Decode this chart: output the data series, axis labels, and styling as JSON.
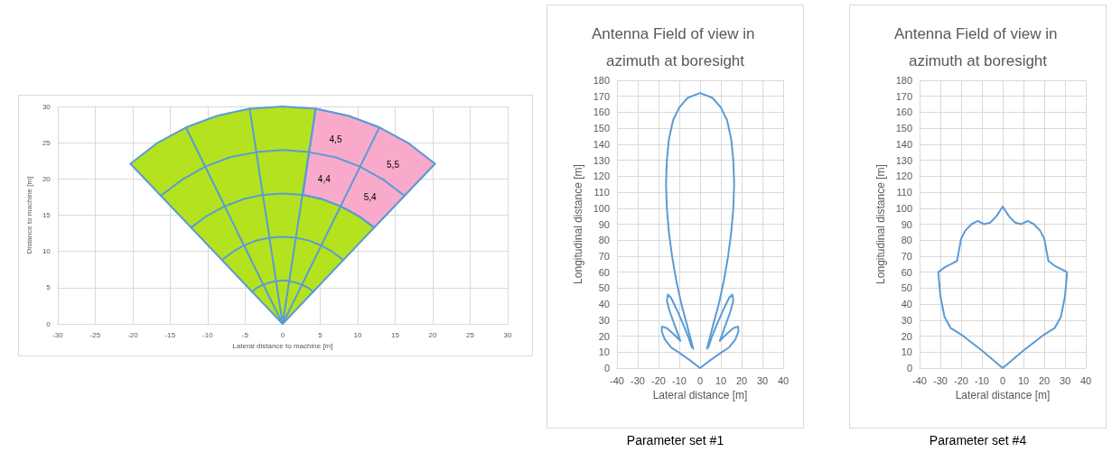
{
  "chart_data": [
    {
      "type": "line",
      "xlabel": "Lateral distance to machine [m]",
      "ylabel": "Distance to machine [m]",
      "xlim": [
        -30,
        30
      ],
      "ylim": [
        0,
        30
      ],
      "xticks": [
        -30,
        -25,
        -20,
        -15,
        -10,
        -5,
        0,
        5,
        10,
        15,
        20,
        25,
        30
      ],
      "yticks": [
        0,
        5,
        10,
        15,
        20,
        25,
        30
      ],
      "grid": true,
      "marker": "none",
      "annotations": [
        "4,5",
        "5,5",
        "4,4",
        "5,4"
      ],
      "series": [
        {
          "type": "area",
          "color": "#b4e21f",
          "x": [
            0,
            -20.3,
            -16.8,
            -12.9,
            -8.8,
            -4.4,
            0,
            4.4,
            8.8,
            12.9,
            16.8,
            20.3,
            0
          ],
          "values": [
            0,
            22.1,
            24.9,
            27.1,
            28.7,
            29.7,
            30,
            29.7,
            28.7,
            27.1,
            24.9,
            22.1,
            0
          ]
        },
        {
          "type": "area",
          "color": "#f9aacb",
          "x": [
            2.7,
            5.3,
            7.8,
            10.1,
            12.2,
            20.3,
            16.8,
            12.9,
            8.8,
            4.4,
            2.7
          ],
          "values": [
            17.8,
            17.2,
            16.2,
            14.9,
            13.3,
            22.1,
            24.9,
            27.1,
            28.7,
            29.7,
            17.8
          ]
        },
        {
          "type": "line",
          "color": "#5b9bd5",
          "x": [
            -4.1,
            -3.4,
            -2.6,
            -1.8,
            -0.9,
            0,
            0.9,
            1.8,
            2.6,
            3.4,
            4.1
          ],
          "values": [
            4.4,
            5.0,
            5.4,
            5.7,
            5.9,
            6,
            5.9,
            5.7,
            5.4,
            5.0,
            4.4
          ]
        },
        {
          "type": "line",
          "color": "#5b9bd5",
          "x": [
            -8.1,
            -6.7,
            -5.2,
            -3.5,
            -1.8,
            0,
            1.8,
            3.5,
            5.2,
            6.7,
            8.1
          ],
          "values": [
            8.8,
            9.9,
            10.8,
            11.5,
            11.9,
            12,
            11.9,
            11.5,
            10.8,
            9.9,
            8.8
          ]
        },
        {
          "type": "line",
          "color": "#5b9bd5",
          "x": [
            -12.2,
            -10.1,
            -7.8,
            -5.3,
            -2.7,
            0,
            2.7,
            5.3,
            7.8,
            10.1,
            12.2
          ],
          "values": [
            13.3,
            14.9,
            16.2,
            17.2,
            17.8,
            18,
            17.8,
            17.2,
            16.2,
            14.9,
            13.3
          ]
        },
        {
          "type": "line",
          "color": "#5b9bd5",
          "x": [
            -16.2,
            -13.4,
            -10.3,
            -7.0,
            -3.5,
            0,
            3.5,
            7.0,
            10.3,
            13.4,
            16.2
          ],
          "values": [
            17.7,
            19.9,
            21.7,
            23.0,
            23.7,
            24,
            23.7,
            23.0,
            21.7,
            19.9,
            17.7
          ]
        },
        {
          "type": "line",
          "color": "#5b9bd5",
          "x": [
            0,
            -12.9
          ],
          "values": [
            0,
            27.1
          ]
        },
        {
          "type": "line",
          "color": "#5b9bd5",
          "x": [
            0,
            -4.4
          ],
          "values": [
            0,
            29.7
          ]
        },
        {
          "type": "line",
          "color": "#5b9bd5",
          "x": [
            0,
            4.4
          ],
          "values": [
            0,
            29.7
          ]
        },
        {
          "type": "line",
          "color": "#5b9bd5",
          "x": [
            0,
            12.9
          ],
          "values": [
            0,
            27.1
          ]
        }
      ]
    },
    {
      "type": "line",
      "title": "Antenna Field of view in azimuth at boresight",
      "xlabel": "Lateral distance [m]",
      "ylabel": "Longitudinal distance [m]",
      "xlim": [
        -40,
        40
      ],
      "ylim": [
        0,
        180
      ],
      "xticks": [
        -40,
        -30,
        -20,
        -10,
        0,
        10,
        20,
        30,
        40
      ],
      "yticks": [
        0,
        10,
        20,
        30,
        40,
        50,
        60,
        70,
        80,
        90,
        100,
        110,
        120,
        130,
        140,
        150,
        160,
        170,
        180
      ],
      "grid": true,
      "marker": "none",
      "annotations": [
        "Parameter set #1"
      ],
      "series": [
        {
          "color": "#5b9bd5",
          "x": [
            -3.3,
            -4.5,
            -6.5,
            -9,
            -11.5,
            -13.5,
            -15,
            -16,
            -16.4,
            -16,
            -15,
            -13,
            -10,
            -6,
            0,
            6,
            10,
            13,
            15,
            16,
            16.4,
            16,
            15,
            13.5,
            11.5,
            9,
            6.5,
            4.5,
            3.3
          ],
          "values": [
            12,
            18,
            28,
            40,
            55,
            70,
            85,
            100,
            115,
            130,
            143,
            155,
            163,
            169,
            172,
            169,
            163,
            155,
            143,
            130,
            115,
            100,
            85,
            70,
            55,
            40,
            28,
            18,
            12
          ]
        },
        {
          "color": "#5b9bd5",
          "x": [
            -4,
            -5.5,
            -8,
            -11,
            -14,
            -15.5,
            -16,
            -14.5,
            -12,
            -9.5,
            -12.5,
            -16,
            -18.3,
            -18.5,
            -17,
            -14,
            -10,
            -5,
            0,
            5,
            10,
            14,
            17,
            18.5,
            18.3,
            16,
            12.5,
            9.5,
            12,
            14.5,
            16,
            15.5,
            14,
            11,
            8,
            5.5,
            4
          ],
          "values": [
            13,
            19,
            27,
            36,
            44,
            46,
            42,
            35,
            26,
            17,
            21,
            25,
            26,
            23,
            18,
            13,
            9.5,
            5,
            0,
            5,
            9.5,
            13,
            18,
            23,
            26,
            25,
            21,
            17,
            26,
            35,
            42,
            46,
            44,
            36,
            27,
            19,
            13
          ]
        }
      ]
    },
    {
      "type": "line",
      "title": "Antenna Field of view in azimuth at boresight",
      "xlabel": "Lateral distance [m]",
      "ylabel": "Longitudinal distance [m]",
      "xlim": [
        -40,
        40
      ],
      "ylim": [
        0,
        180
      ],
      "xticks": [
        -40,
        -30,
        -20,
        -10,
        0,
        10,
        20,
        30,
        40
      ],
      "yticks": [
        0,
        10,
        20,
        30,
        40,
        50,
        60,
        70,
        80,
        90,
        100,
        110,
        120,
        130,
        140,
        150,
        160,
        170,
        180
      ],
      "grid": true,
      "marker": "none",
      "annotations": [
        "Parameter set #4"
      ],
      "series": [
        {
          "color": "#5b9bd5",
          "x": [
            0,
            -10,
            -20,
            -25,
            -28,
            -30,
            -31,
            -28,
            -25,
            -22,
            -21,
            -20,
            -18,
            -15,
            -12,
            -9,
            -6,
            -3,
            0
          ],
          "values": [
            0,
            11,
            21,
            25,
            32,
            45,
            60,
            63,
            65,
            67,
            74,
            81,
            86,
            90,
            92,
            90,
            91,
            95,
            101
          ]
        },
        {
          "color": "#5b9bd5",
          "x": [
            0,
            3,
            6,
            9,
            12,
            15,
            18,
            20,
            21,
            22,
            25,
            28,
            31,
            30,
            28,
            25,
            20,
            10,
            0
          ],
          "values": [
            101,
            95,
            91,
            90,
            92,
            90,
            86,
            81,
            74,
            67,
            64,
            62,
            60,
            45,
            32,
            25,
            21,
            11,
            0
          ]
        }
      ]
    }
  ]
}
